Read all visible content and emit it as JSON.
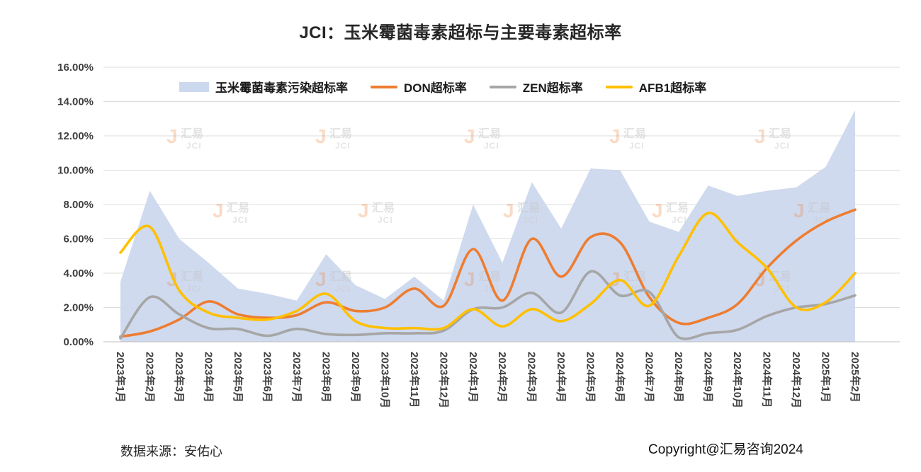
{
  "chart_data": {
    "type": "area+line",
    "title": "JCI：玉米霉菌毒素超标与主要毒素超标率",
    "categories": [
      "2023年1月",
      "2023年2月",
      "2023年3月",
      "2023年4月",
      "2023年5月",
      "2023年6月",
      "2023年7月",
      "2023年8月",
      "2023年9月",
      "2023年10月",
      "2023年11月",
      "2023年12月",
      "2024年1月",
      "2024年2月",
      "2024年3月",
      "2024年4月",
      "2024年5月",
      "2024年6月",
      "2024年7月",
      "2024年8月",
      "2024年9月",
      "2024年10月",
      "2024年11月",
      "2024年12月",
      "2025年1月",
      "2025年2月"
    ],
    "series": [
      {
        "name": "玉米霉菌毒素污染超标率",
        "type": "area",
        "color": "#ccd8ee",
        "values": [
          3.5,
          8.8,
          6.0,
          4.6,
          3.1,
          2.8,
          2.4,
          5.1,
          3.3,
          2.5,
          3.8,
          2.4,
          8.0,
          4.6,
          9.3,
          6.6,
          10.1,
          10.0,
          7.0,
          6.4,
          9.1,
          8.5,
          8.8,
          9.0,
          10.2,
          13.5
        ]
      },
      {
        "name": "DON超标率",
        "type": "line",
        "color": "#ed7d31",
        "values": [
          0.3,
          0.6,
          1.3,
          2.35,
          1.6,
          1.4,
          1.55,
          2.3,
          1.8,
          2.0,
          3.1,
          2.1,
          5.4,
          2.4,
          6.0,
          3.8,
          6.1,
          5.8,
          2.6,
          1.1,
          1.4,
          2.2,
          4.3,
          5.9,
          7.0,
          7.7
        ]
      },
      {
        "name": "ZEN超标率",
        "type": "line",
        "color": "#a6a6a6",
        "values": [
          0.2,
          2.6,
          1.6,
          0.8,
          0.75,
          0.35,
          0.75,
          0.45,
          0.4,
          0.5,
          0.5,
          0.65,
          1.9,
          2.0,
          2.85,
          1.7,
          4.1,
          2.7,
          2.9,
          0.25,
          0.5,
          0.7,
          1.5,
          2.0,
          2.2,
          2.7
        ]
      },
      {
        "name": "AFB1超标率",
        "type": "line",
        "color": "#ffc000",
        "values": [
          5.2,
          6.7,
          3.0,
          1.7,
          1.4,
          1.3,
          1.8,
          2.8,
          1.2,
          0.8,
          0.8,
          0.8,
          1.9,
          0.9,
          1.9,
          1.2,
          2.2,
          3.6,
          2.1,
          5.0,
          7.5,
          5.8,
          4.3,
          2.0,
          2.3,
          4.0
        ]
      }
    ],
    "ylim": [
      0,
      16
    ],
    "ytick_step": 2,
    "ytick_format": "0.00%",
    "grid": true,
    "legend_position": "top-inside",
    "x_label_rotation": 90
  },
  "watermark": {
    "brand_cn": "汇易",
    "brand_en": "JCI",
    "accent_color": "#ed7d31"
  },
  "footer": {
    "source": "数据来源：安佑心",
    "copyright": "Copyright@汇易咨询2024"
  }
}
